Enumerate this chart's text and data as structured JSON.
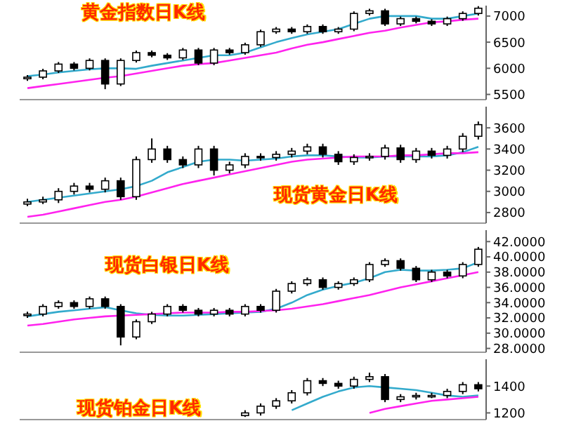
{
  "chart_data": [
    {
      "type": "candlestick",
      "title": "黄金指数日K线",
      "categories": [
        null,
        null,
        null,
        null,
        null,
        null,
        null,
        null,
        null,
        null,
        null,
        null,
        null,
        null,
        null,
        null,
        null,
        null,
        null,
        null,
        null,
        null,
        null,
        null,
        null,
        null,
        null,
        null,
        null,
        null
      ],
      "ohlc": [
        [
          5800,
          5870,
          5760,
          5830
        ],
        [
          5830,
          5990,
          5790,
          5950
        ],
        [
          5950,
          6120,
          5910,
          6080
        ],
        [
          6080,
          6120,
          5960,
          6000
        ],
        [
          6000,
          6190,
          5960,
          6150
        ],
        [
          6150,
          6190,
          5600,
          5700
        ],
        [
          5700,
          6190,
          5660,
          6150
        ],
        [
          6150,
          6340,
          6110,
          6300
        ],
        [
          6300,
          6340,
          6210,
          6250
        ],
        [
          6250,
          6290,
          6160,
          6200
        ],
        [
          6200,
          6390,
          6160,
          6350
        ],
        [
          6350,
          6390,
          6060,
          6100
        ],
        [
          6100,
          6390,
          6060,
          6350
        ],
        [
          6350,
          6390,
          6260,
          6300
        ],
        [
          6300,
          6490,
          6260,
          6450
        ],
        [
          6450,
          6740,
          6410,
          6700
        ],
        [
          6700,
          6790,
          6660,
          6750
        ],
        [
          6750,
          6790,
          6660,
          6700
        ],
        [
          6700,
          6840,
          6660,
          6800
        ],
        [
          6800,
          6840,
          6660,
          6700
        ],
        [
          6700,
          6790,
          6660,
          6750
        ],
        [
          6750,
          7090,
          6710,
          7050
        ],
        [
          7050,
          7140,
          7010,
          7100
        ],
        [
          7100,
          7140,
          6810,
          6850
        ],
        [
          6850,
          6990,
          6810,
          6950
        ],
        [
          6950,
          6990,
          6860,
          6900
        ],
        [
          6900,
          6940,
          6810,
          6850
        ],
        [
          6850,
          6990,
          6810,
          6950
        ],
        [
          6950,
          7090,
          6910,
          7050
        ],
        [
          7050,
          7190,
          7010,
          7150
        ]
      ],
      "series": [
        {
          "type": "line",
          "color": "#33aacc",
          "values": [
            5850,
            5880,
            5920,
            5950,
            5980,
            6000,
            6000,
            5990,
            6050,
            6100,
            6150,
            6200,
            6250,
            6250,
            6300,
            6400,
            6500,
            6580,
            6650,
            6700,
            6750,
            6850,
            6950,
            7000,
            7000,
            7000,
            6950,
            6950,
            7000,
            7050
          ]
        },
        {
          "type": "line",
          "color": "#ff22ee",
          "values": [
            5620,
            5660,
            5700,
            5740,
            5780,
            5820,
            5850,
            5900,
            5950,
            6000,
            6050,
            6080,
            6100,
            6150,
            6200,
            6250,
            6300,
            6380,
            6450,
            6500,
            6560,
            6620,
            6680,
            6720,
            6780,
            6830,
            6880,
            6900,
            6930,
            6950
          ]
        }
      ],
      "ylim": [
        5400,
        7200
      ],
      "yticks": [
        5500,
        6000,
        6500,
        7000
      ],
      "tick_labels": "y"
    },
    {
      "type": "candlestick",
      "title": "现货黄金日K线",
      "categories": [
        null,
        null,
        null,
        null,
        null,
        null,
        null,
        null,
        null,
        null,
        null,
        null,
        null,
        null,
        null,
        null,
        null,
        null,
        null,
        null,
        null,
        null,
        null,
        null,
        null,
        null,
        null,
        null,
        null,
        null
      ],
      "ohlc": [
        [
          2880,
          2930,
          2860,
          2900
        ],
        [
          2900,
          2950,
          2880,
          2920
        ],
        [
          2920,
          3030,
          2890,
          3000
        ],
        [
          3000,
          3080,
          2970,
          3050
        ],
        [
          3050,
          3080,
          2990,
          3020
        ],
        [
          3020,
          3130,
          2990,
          3100
        ],
        [
          3100,
          3130,
          2920,
          2950
        ],
        [
          2950,
          3330,
          2920,
          3300
        ],
        [
          3300,
          3500,
          3270,
          3400
        ],
        [
          3400,
          3430,
          3270,
          3300
        ],
        [
          3300,
          3330,
          3220,
          3250
        ],
        [
          3250,
          3430,
          3220,
          3400
        ],
        [
          3400,
          3430,
          3150,
          3200
        ],
        [
          3200,
          3280,
          3170,
          3250
        ],
        [
          3250,
          3360,
          3220,
          3330
        ],
        [
          3330,
          3360,
          3290,
          3320
        ],
        [
          3320,
          3380,
          3290,
          3350
        ],
        [
          3350,
          3410,
          3320,
          3380
        ],
        [
          3380,
          3450,
          3350,
          3420
        ],
        [
          3420,
          3450,
          3320,
          3350
        ],
        [
          3350,
          3380,
          3250,
          3280
        ],
        [
          3280,
          3350,
          3250,
          3320
        ],
        [
          3320,
          3360,
          3290,
          3330
        ],
        [
          3330,
          3440,
          3300,
          3410
        ],
        [
          3410,
          3440,
          3270,
          3300
        ],
        [
          3300,
          3410,
          3270,
          3380
        ],
        [
          3380,
          3410,
          3310,
          3340
        ],
        [
          3340,
          3430,
          3310,
          3400
        ],
        [
          3400,
          3550,
          3370,
          3520
        ],
        [
          3520,
          3660,
          3490,
          3630
        ]
      ],
      "series": [
        {
          "type": "line",
          "color": "#33aacc",
          "values": [
            2900,
            2920,
            2940,
            2960,
            2980,
            3000,
            3020,
            3050,
            3100,
            3180,
            3230,
            3280,
            3300,
            3300,
            3290,
            3300,
            3310,
            3330,
            3340,
            3340,
            3330,
            3320,
            3320,
            3330,
            3330,
            3330,
            3330,
            3340,
            3370,
            3420
          ]
        },
        {
          "type": "line",
          "color": "#ff22ee",
          "values": [
            2760,
            2780,
            2810,
            2840,
            2870,
            2900,
            2920,
            2950,
            2990,
            3030,
            3070,
            3100,
            3130,
            3160,
            3190,
            3220,
            3250,
            3280,
            3300,
            3310,
            3320,
            3330,
            3330,
            3330,
            3340,
            3340,
            3350,
            3360,
            3360,
            3370
          ]
        }
      ],
      "ylim": [
        2700,
        3800
      ],
      "yticks": [
        2800,
        3000,
        3200,
        3400,
        3600
      ],
      "tick_labels": "y"
    },
    {
      "type": "candlestick",
      "title": "现货白银日K线",
      "categories": [
        null,
        null,
        null,
        null,
        null,
        null,
        null,
        null,
        null,
        null,
        null,
        null,
        null,
        null,
        null,
        null,
        null,
        null,
        null,
        null,
        null,
        null,
        null,
        null,
        null,
        null,
        null,
        null,
        null,
        null
      ],
      "ohlc": [
        [
          32.3,
          32.8,
          32.0,
          32.5
        ],
        [
          32.5,
          33.8,
          32.2,
          33.5
        ],
        [
          33.5,
          34.3,
          33.2,
          34
        ],
        [
          34,
          34.3,
          33.2,
          33.5
        ],
        [
          33.5,
          34.8,
          33.2,
          34.5
        ],
        [
          34.5,
          34.8,
          33.2,
          33.5
        ],
        [
          33.5,
          33.8,
          28.4,
          29.5
        ],
        [
          29.5,
          31.8,
          29.2,
          31.5
        ],
        [
          31.5,
          32.8,
          31.2,
          32.5
        ],
        [
          32.5,
          33.8,
          32.2,
          33.5
        ],
        [
          33.5,
          33.8,
          32.7,
          33
        ],
        [
          33,
          33.3,
          32.2,
          32.5
        ],
        [
          32.5,
          33.3,
          32.2,
          33
        ],
        [
          33,
          33.3,
          32.2,
          32.5
        ],
        [
          32.5,
          33.8,
          32.2,
          33.5
        ],
        [
          33.5,
          33.8,
          32.7,
          33
        ],
        [
          33,
          35.8,
          32.7,
          35.5
        ],
        [
          35.5,
          36.8,
          35.2,
          36.5
        ],
        [
          36.5,
          37.3,
          36.2,
          37
        ],
        [
          37,
          37.3,
          35.7,
          36
        ],
        [
          36,
          36.8,
          35.7,
          36.5
        ],
        [
          36.5,
          37.3,
          36.2,
          37
        ],
        [
          37,
          39.3,
          36.7,
          39
        ],
        [
          39,
          39.8,
          38.7,
          39.5
        ],
        [
          39.5,
          39.8,
          38.2,
          38.5
        ],
        [
          38.5,
          38.8,
          36.7,
          37
        ],
        [
          37,
          38.3,
          36.7,
          38
        ],
        [
          38,
          38.3,
          37.2,
          37.5
        ],
        [
          37.5,
          39.3,
          37.2,
          39
        ],
        [
          39,
          41.3,
          38.7,
          41
        ]
      ],
      "series": [
        {
          "type": "line",
          "color": "#33aacc",
          "values": [
            32.2,
            32.5,
            32.8,
            33,
            33.2,
            33.4,
            33,
            32.6,
            32.4,
            32.3,
            32.3,
            32.4,
            32.5,
            32.6,
            32.7,
            32.8,
            33.2,
            34,
            35,
            35.7,
            36.2,
            36.6,
            37.2,
            38,
            38.3,
            38.2,
            38.2,
            38.3,
            38.5,
            39.3
          ]
        },
        {
          "type": "line",
          "color": "#ff22ee",
          "values": [
            31,
            31.2,
            31.5,
            31.8,
            32,
            32.2,
            32.3,
            32.4,
            32.5,
            32.6,
            32.7,
            32.7,
            32.7,
            32.8,
            32.8,
            32.9,
            33,
            33.2,
            33.5,
            33.8,
            34.2,
            34.6,
            35,
            35.5,
            36,
            36.4,
            36.8,
            37.2,
            37.6,
            38
          ]
        }
      ],
      "ylim": [
        27.5,
        43.5
      ],
      "yticks": [
        {
          "value": 28,
          "label": "28.0000"
        },
        {
          "value": 30,
          "label": "30.0000"
        },
        {
          "value": 32,
          "label": "32.0000"
        },
        {
          "value": 34,
          "label": "34.0000"
        },
        {
          "value": 36,
          "label": "36.0000"
        },
        {
          "value": 38,
          "label": "38.0000"
        },
        {
          "value": 40,
          "label": "40.0000"
        },
        {
          "value": 42,
          "label": "42.0000"
        }
      ],
      "tick_labels": "y"
    },
    {
      "type": "candlestick",
      "title": "现货铂金日K线",
      "categories": [
        null,
        null,
        null,
        null,
        null,
        null,
        null,
        null,
        null,
        null,
        null,
        null,
        null,
        null,
        null,
        null,
        null,
        null,
        null,
        null,
        null,
        null,
        null,
        null,
        null,
        null,
        null,
        null,
        null,
        null
      ],
      "ohlc": [
        null,
        null,
        null,
        null,
        null,
        null,
        null,
        null,
        null,
        null,
        null,
        null,
        null,
        null,
        [
          1180,
          1220,
          1170,
          1200
        ],
        [
          1200,
          1270,
          1180,
          1250
        ],
        [
          1250,
          1310,
          1230,
          1290
        ],
        [
          1290,
          1370,
          1270,
          1350
        ],
        [
          1350,
          1460,
          1330,
          1440
        ],
        [
          1440,
          1460,
          1400,
          1420
        ],
        [
          1420,
          1440,
          1380,
          1400
        ],
        [
          1400,
          1470,
          1380,
          1450
        ],
        [
          1450,
          1500,
          1430,
          1470
        ],
        [
          1470,
          1490,
          1280,
          1300
        ],
        [
          1300,
          1340,
          1280,
          1320
        ],
        [
          1320,
          1350,
          1300,
          1330
        ],
        [
          1330,
          1350,
          1310,
          1330
        ],
        [
          1330,
          1380,
          1310,
          1360
        ],
        [
          1360,
          1430,
          1340,
          1410
        ],
        [
          1410,
          1430,
          1360,
          1380
        ]
      ],
      "series": [
        {
          "type": "line",
          "color": "#33aacc",
          "values": [
            null,
            null,
            null,
            null,
            null,
            null,
            null,
            null,
            null,
            null,
            null,
            null,
            null,
            null,
            null,
            null,
            null,
            1220,
            1270,
            1320,
            1360,
            1390,
            1400,
            1390,
            1380,
            1370,
            1350,
            1330,
            1320,
            1330
          ]
        },
        {
          "type": "line",
          "color": "#ff22ee",
          "values": [
            null,
            null,
            null,
            null,
            null,
            null,
            null,
            null,
            null,
            null,
            null,
            null,
            null,
            null,
            null,
            null,
            null,
            null,
            null,
            null,
            null,
            null,
            1200,
            1230,
            1250,
            1270,
            1290,
            1300,
            1310,
            1320
          ]
        }
      ],
      "ylim": [
        1150,
        1600
      ],
      "yticks": [
        1200,
        1400
      ],
      "tick_labels": "y"
    }
  ]
}
